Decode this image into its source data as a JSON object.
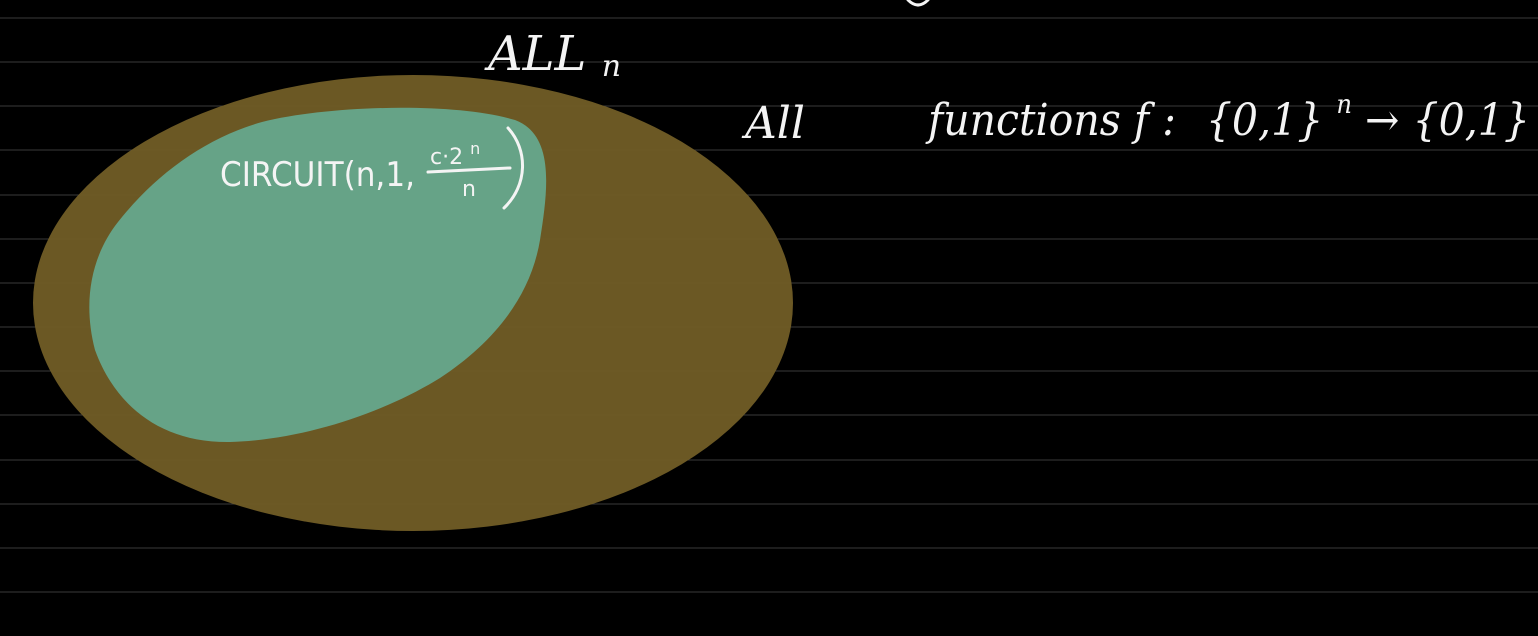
{
  "canvas": {
    "background_color": "#000000",
    "rule_line_color": "#3a3a3a",
    "ink_color": "#f4f4f4"
  },
  "outer_set": {
    "label": "ALLn",
    "label_main": "ALL",
    "label_subscript": "n",
    "fill_color": "#6e5b25"
  },
  "inner_set": {
    "label": "CIRCUIT(n,1, c·2ⁿ/n)",
    "label_prefix": "CIRCUIT(n,1,",
    "fraction_numerator": "c·2",
    "fraction_numerator_exponent": "n",
    "fraction_denominator": "n",
    "label_suffix": ")",
    "fill_color": "#66a58a"
  },
  "annotation": {
    "word_all": "All",
    "text": "functions f : {0,1}ⁿ → {0,1}",
    "prefix": "functions  f :",
    "domain": "{0,1}",
    "domain_exponent": "n",
    "arrow": "→",
    "codomain": "{0,1}"
  }
}
